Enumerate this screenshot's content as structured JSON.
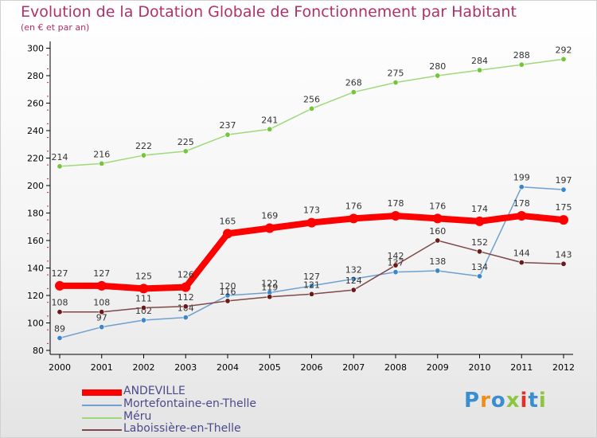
{
  "title": "Evolution de la Dotation Globale de Fonctionnement par Habitant",
  "subtitle": "(en € et par an)",
  "logo_text": "Proxiti",
  "chart_data": {
    "type": "line",
    "x": [
      "2000",
      "2001",
      "2002",
      "2003",
      "2004",
      "2005",
      "2006",
      "2007",
      "2008",
      "2009",
      "2010",
      "2011",
      "2012"
    ],
    "ylim": [
      80,
      300
    ],
    "yticks": [
      80,
      100,
      120,
      140,
      160,
      180,
      200,
      220,
      240,
      260,
      280,
      300
    ],
    "grid": false,
    "legend": "bottom-left",
    "series": [
      {
        "name": "ANDEVILLE",
        "color": "#ff0000",
        "marker": "#ff0000",
        "values": [
          127,
          127,
          125,
          126,
          165,
          169,
          173,
          176,
          178,
          176,
          174,
          178,
          175
        ]
      },
      {
        "name": "Mortefontaine-en-Thelle",
        "color": "#6fa0cf",
        "marker": "#3a87c9",
        "values": [
          89,
          97,
          102,
          104,
          120,
          122,
          127,
          132,
          137,
          138,
          134,
          199,
          197
        ]
      },
      {
        "name": "Méru",
        "color": "#9fd97a",
        "marker": "#74c43c",
        "values": [
          214,
          216,
          222,
          225,
          237,
          241,
          256,
          268,
          275,
          280,
          284,
          288,
          292
        ]
      },
      {
        "name": "Laboissière-en-Thelle",
        "color": "#804848",
        "marker": "#6a1a1a",
        "values": [
          108,
          108,
          111,
          112,
          116,
          119,
          121,
          124,
          142,
          160,
          152,
          144,
          143
        ]
      }
    ]
  }
}
